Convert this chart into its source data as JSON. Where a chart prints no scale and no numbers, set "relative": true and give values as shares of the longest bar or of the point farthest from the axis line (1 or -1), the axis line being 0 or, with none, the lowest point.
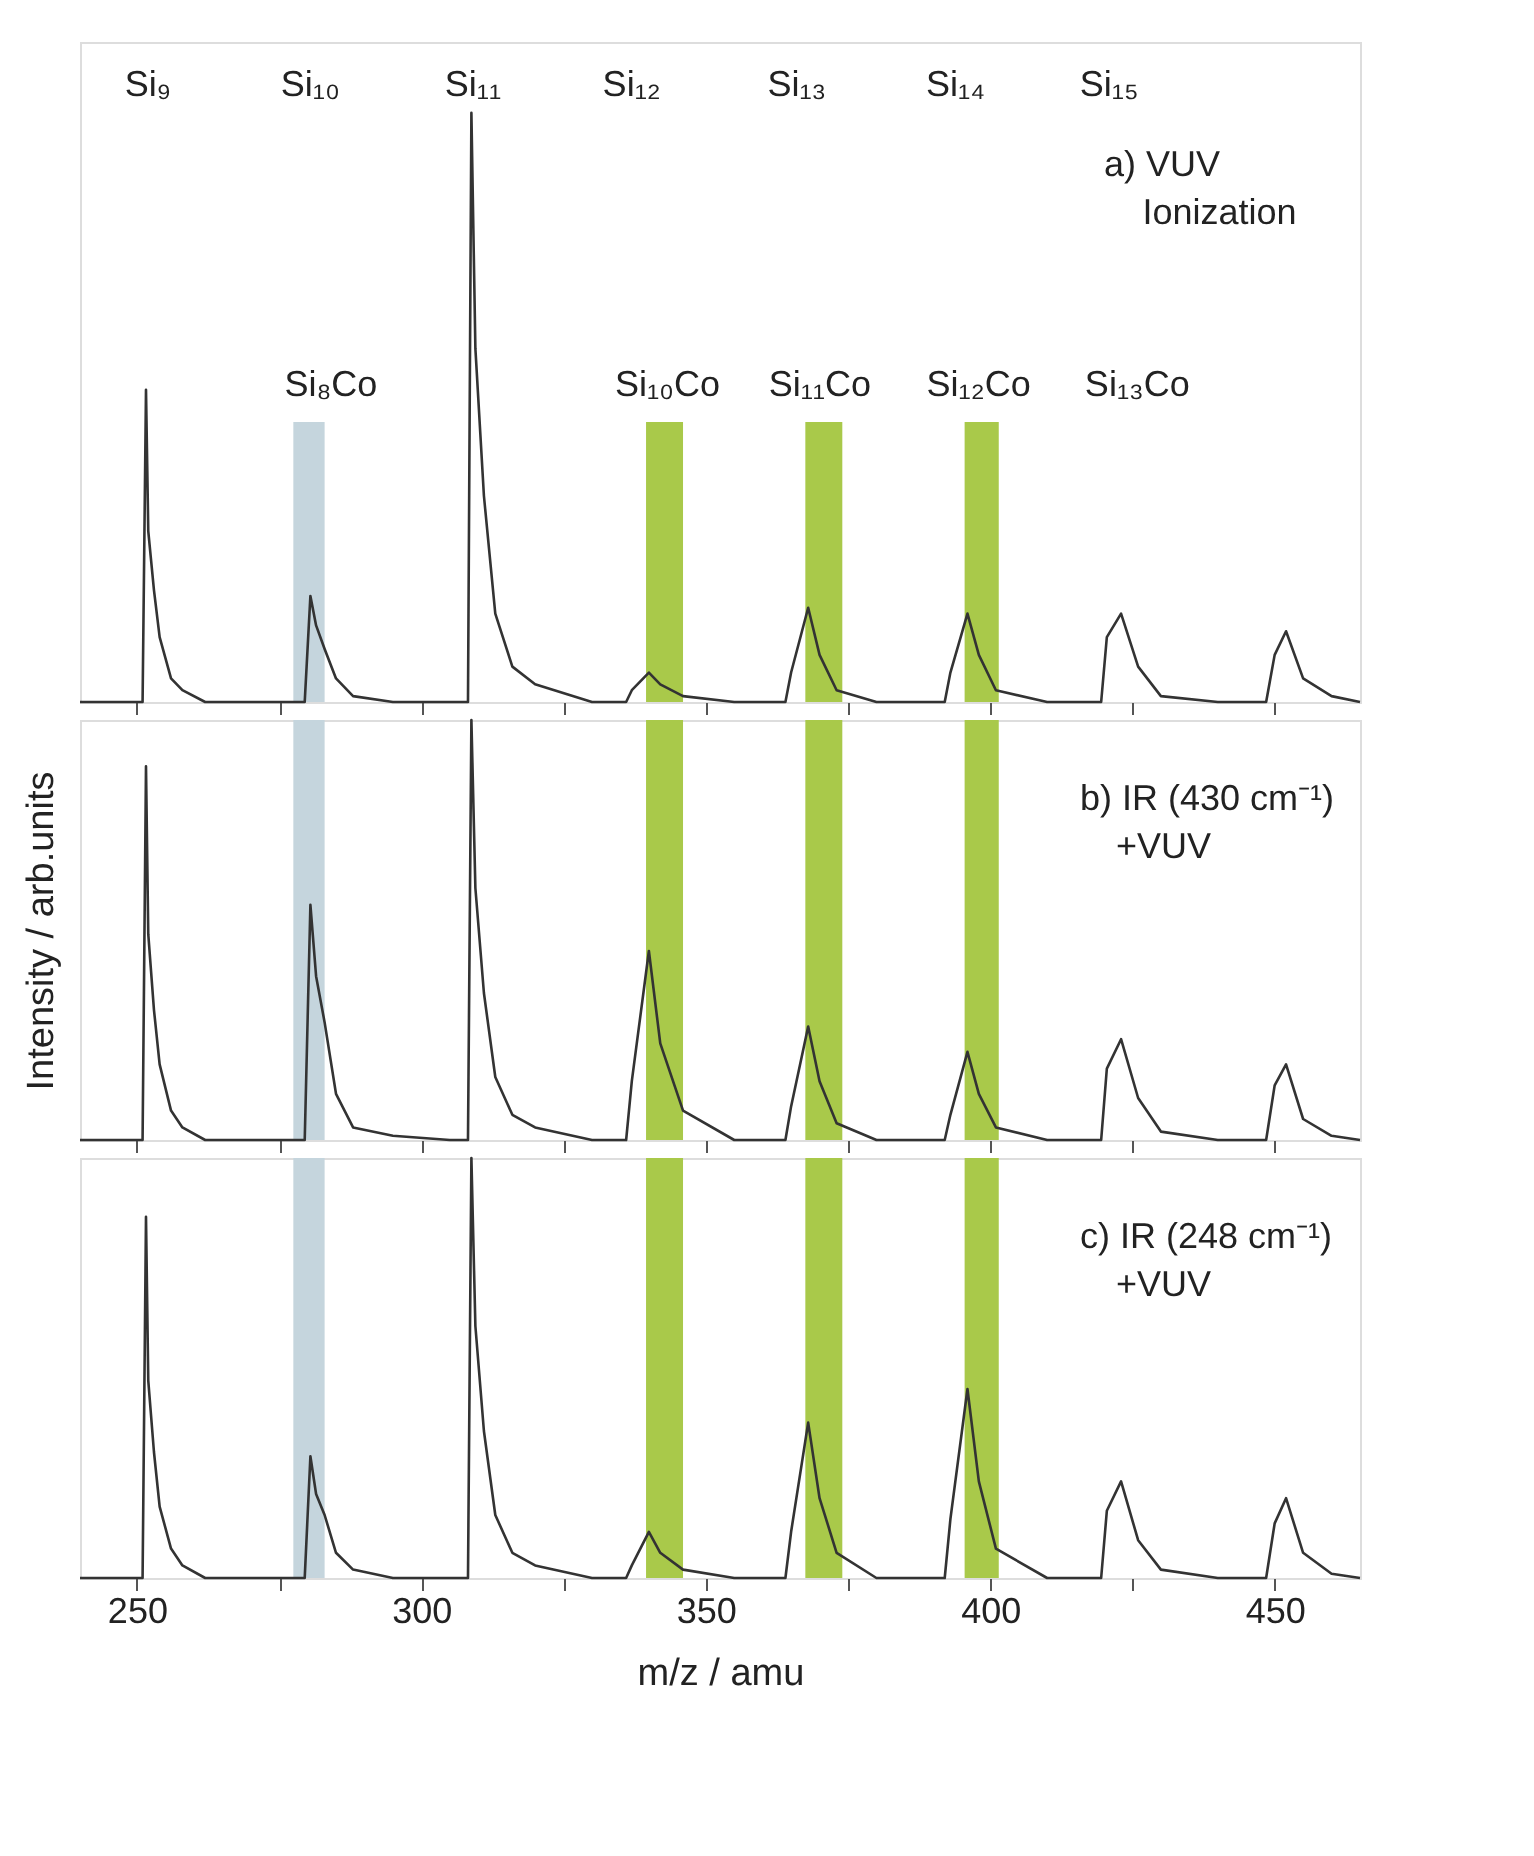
{
  "chart_data": [
    {
      "type": "line",
      "relative": true,
      "grid": false,
      "tick_labels": false,
      "xlim": [
        240,
        465
      ],
      "xticks": [
        250,
        {
          "value": 275,
          "label": null
        },
        300,
        {
          "value": 325,
          "label": null
        },
        350,
        {
          "value": 375,
          "label": null
        },
        400,
        {
          "value": 425,
          "label": null
        },
        450
      ],
      "x": [
        240,
        251,
        251.6,
        252,
        253,
        254,
        256,
        258,
        262,
        270,
        279.5,
        280.5,
        281.5,
        283,
        285,
        288,
        295,
        305,
        308.2,
        308.8,
        309.5,
        311,
        313,
        316,
        320,
        330,
        336,
        337,
        340,
        342,
        346,
        355,
        364,
        365,
        368,
        370,
        373,
        380,
        392,
        393,
        396,
        398,
        401,
        410,
        419.5,
        420.5,
        423,
        426,
        430,
        440,
        448.5,
        450,
        452,
        455,
        460,
        465
      ],
      "series": [
        {
          "color": "#333333",
          "values": [
            0,
            0,
            0.53,
            0.29,
            0.19,
            0.11,
            0.04,
            0.02,
            0,
            0,
            0,
            0.18,
            0.13,
            0.09,
            0.04,
            0.01,
            0,
            0,
            0,
            1,
            0.6,
            0.35,
            0.15,
            0.06,
            0.03,
            0,
            0,
            0.02,
            0.05,
            0.03,
            0.01,
            0,
            0,
            0.05,
            0.16,
            0.08,
            0.02,
            0,
            0,
            0.05,
            0.15,
            0.08,
            0.02,
            0,
            0,
            0.11,
            0.15,
            0.06,
            0.01,
            0,
            0,
            0.08,
            0.12,
            0.04,
            0.01,
            0
          ]
        }
      ],
      "bands": [
        {
          "axis": "x",
          "from": 277.5,
          "to": 283,
          "color": "#c5d5dd"
        },
        {
          "axis": "x",
          "from": 339.5,
          "to": 346,
          "color": "#a9c94a"
        },
        {
          "axis": "x",
          "from": 367.5,
          "to": 374,
          "color": "#a9c94a"
        },
        {
          "axis": "x",
          "from": 395.5,
          "to": 401.5,
          "color": "#a9c94a"
        }
      ],
      "annotations": [
        "Si₉",
        "Si₁₀",
        "Si₁₁",
        "Si₁₂",
        "Si₁₃",
        "Si₁₄",
        "Si₁₅",
        "Si₈Co",
        "Si₁₀Co",
        "Si₁₁Co",
        "Si₁₂Co",
        "Si₁₃Co",
        "a) VUV",
        "Ionization"
      ]
    },
    {
      "type": "line",
      "relative": true,
      "grid": false,
      "tick_labels": false,
      "xlim": [
        240,
        465
      ],
      "xticks": [
        250,
        {
          "value": 275,
          "label": null
        },
        300,
        {
          "value": 325,
          "label": null
        },
        350,
        {
          "value": 375,
          "label": null
        },
        400,
        {
          "value": 425,
          "label": null
        },
        450
      ],
      "ylabel": "Intensity / arb.units",
      "x": [
        240,
        251,
        251.6,
        252,
        253,
        254,
        256,
        258,
        262,
        270,
        279.5,
        280.5,
        281.5,
        283,
        285,
        288,
        295,
        305,
        308.2,
        308.8,
        309.5,
        311,
        313,
        316,
        320,
        330,
        336,
        337,
        340,
        342,
        346,
        355,
        364,
        365,
        368,
        370,
        373,
        380,
        392,
        393,
        396,
        398,
        401,
        410,
        419.5,
        420.5,
        423,
        426,
        430,
        440,
        448.5,
        450,
        452,
        455,
        460,
        465
      ],
      "series": [
        {
          "color": "#333333",
          "values": [
            0,
            0,
            0.89,
            0.49,
            0.31,
            0.18,
            0.07,
            0.03,
            0,
            0,
            0,
            0.56,
            0.39,
            0.28,
            0.11,
            0.03,
            0.01,
            0,
            0,
            1,
            0.6,
            0.35,
            0.15,
            0.06,
            0.03,
            0,
            0,
            0.14,
            0.45,
            0.23,
            0.07,
            0,
            0,
            0.08,
            0.27,
            0.14,
            0.04,
            0,
            0,
            0.06,
            0.21,
            0.11,
            0.03,
            0,
            0,
            0.17,
            0.24,
            0.1,
            0.02,
            0,
            0,
            0.13,
            0.18,
            0.05,
            0.01,
            0
          ]
        }
      ],
      "bands": [
        {
          "axis": "x",
          "from": 277.5,
          "to": 283,
          "color": "#c5d5dd"
        },
        {
          "axis": "x",
          "from": 339.5,
          "to": 346,
          "color": "#a9c94a"
        },
        {
          "axis": "x",
          "from": 367.5,
          "to": 374,
          "color": "#a9c94a"
        },
        {
          "axis": "x",
          "from": 395.5,
          "to": 401.5,
          "color": "#a9c94a"
        }
      ],
      "annotations": [
        "b) IR (430 cm⁻¹)",
        "+VUV"
      ]
    },
    {
      "type": "line",
      "relative": true,
      "grid": false,
      "tick_labels": "x",
      "xlim": [
        240,
        465
      ],
      "xticks": [
        250,
        {
          "value": 275,
          "label": null
        },
        300,
        {
          "value": 325,
          "label": null
        },
        350,
        {
          "value": 375,
          "label": null
        },
        400,
        {
          "value": 425,
          "label": null
        },
        450
      ],
      "xlabel": "m/z / amu",
      "x": [
        240,
        251,
        251.6,
        252,
        253,
        254,
        256,
        258,
        262,
        270,
        279.5,
        280.5,
        281.5,
        283,
        285,
        288,
        295,
        305,
        308.2,
        308.8,
        309.5,
        311,
        313,
        316,
        320,
        330,
        336,
        337,
        340,
        342,
        346,
        355,
        364,
        365,
        368,
        370,
        373,
        380,
        392,
        393,
        396,
        398,
        401,
        410,
        419.5,
        420.5,
        423,
        426,
        430,
        440,
        448.5,
        450,
        452,
        455,
        460,
        465
      ],
      "series": [
        {
          "color": "#333333",
          "values": [
            0,
            0,
            0.86,
            0.47,
            0.3,
            0.17,
            0.07,
            0.03,
            0,
            0,
            0,
            0.29,
            0.2,
            0.15,
            0.06,
            0.02,
            0,
            0,
            0,
            1,
            0.6,
            0.35,
            0.15,
            0.06,
            0.03,
            0,
            0,
            0.03,
            0.11,
            0.06,
            0.02,
            0,
            0,
            0.11,
            0.37,
            0.19,
            0.06,
            0,
            0,
            0.14,
            0.45,
            0.23,
            0.07,
            0,
            0,
            0.16,
            0.23,
            0.09,
            0.02,
            0,
            0,
            0.13,
            0.19,
            0.06,
            0.01,
            0
          ]
        }
      ],
      "bands": [
        {
          "axis": "x",
          "from": 277.5,
          "to": 283,
          "color": "#c5d5dd"
        },
        {
          "axis": "x",
          "from": 339.5,
          "to": 346,
          "color": "#a9c94a"
        },
        {
          "axis": "x",
          "from": 367.5,
          "to": 374,
          "color": "#a9c94a"
        },
        {
          "axis": "x",
          "from": 395.5,
          "to": 401.5,
          "color": "#a9c94a"
        }
      ],
      "annotations": [
        "c) IR (248 cm⁻¹)",
        "+VUV"
      ]
    }
  ]
}
